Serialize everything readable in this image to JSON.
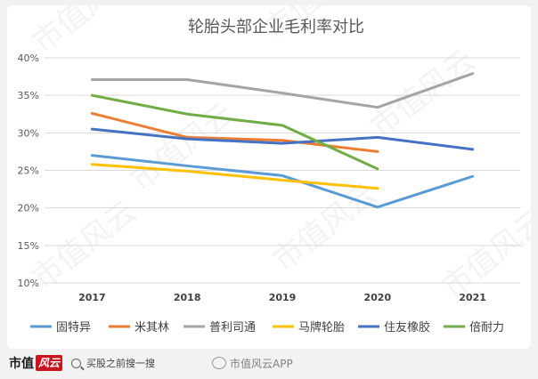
{
  "chart_data": {
    "type": "line",
    "title": "轮胎头部企业毛利率对比",
    "xlabel": "",
    "ylabel": "",
    "categories": [
      "2017",
      "2018",
      "2019",
      "2020",
      "2021"
    ],
    "ylim": [
      0.1,
      0.4
    ],
    "yticks": [
      0.1,
      0.15,
      0.2,
      0.25,
      0.3,
      0.35,
      0.4
    ],
    "ytick_labels": [
      "10%",
      "15%",
      "20%",
      "25%",
      "30%",
      "35%",
      "40%"
    ],
    "grid": true,
    "legend_position": "bottom",
    "series": [
      {
        "name": "固特异",
        "color": "#5b9bd5",
        "values": [
          0.27,
          0.256,
          0.243,
          0.201,
          0.242
        ]
      },
      {
        "name": "米其林",
        "color": "#ed7d31",
        "values": [
          0.326,
          0.294,
          0.29,
          0.275,
          null
        ]
      },
      {
        "name": "普利司通",
        "color": "#a5a5a5",
        "values": [
          0.371,
          0.371,
          0.353,
          0.334,
          0.379
        ]
      },
      {
        "name": "马牌轮胎",
        "color": "#ffc000",
        "values": [
          0.258,
          0.249,
          0.237,
          0.226,
          null
        ]
      },
      {
        "name": "住友橡胶",
        "color": "#4472c4",
        "values": [
          0.305,
          0.292,
          0.286,
          0.294,
          0.278
        ]
      },
      {
        "name": "倍耐力",
        "color": "#70ad47",
        "values": [
          0.35,
          0.325,
          0.31,
          0.252,
          null
        ]
      }
    ]
  },
  "watermark": {
    "text": "市值风云"
  },
  "footer": {
    "brand_text": "市值",
    "brand_mark": "风云",
    "search_text": "买股之前搜一搜",
    "weibo_text": "市值风云APP"
  }
}
